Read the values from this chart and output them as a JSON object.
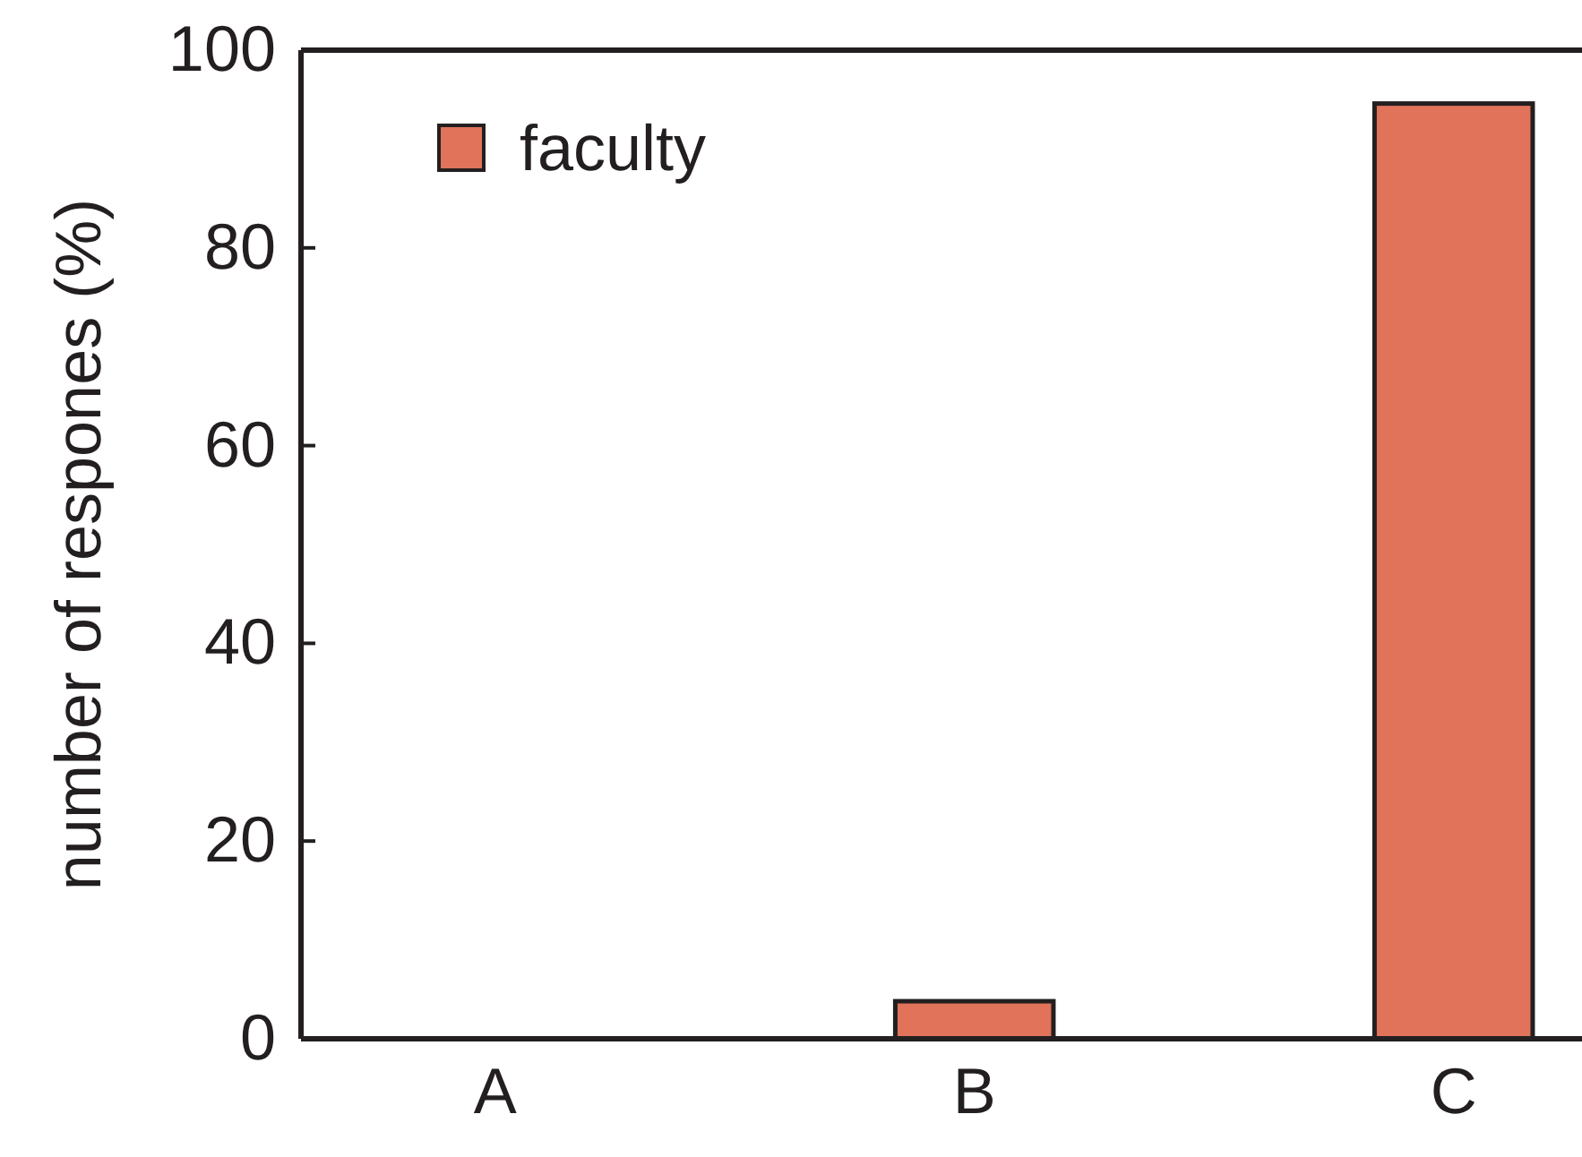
{
  "chart_data": {
    "type": "bar",
    "ylabel": "number of respones (%)",
    "categories": [
      "A",
      "B",
      "C"
    ],
    "series": [
      {
        "name": "faculty",
        "color": "#e07359",
        "values": [
          0,
          3.8,
          94.6
        ]
      }
    ],
    "ylim": [
      0,
      100
    ],
    "yticks": [
      0,
      20,
      40,
      60,
      80,
      100
    ],
    "grid": false,
    "legend": "top left"
  }
}
